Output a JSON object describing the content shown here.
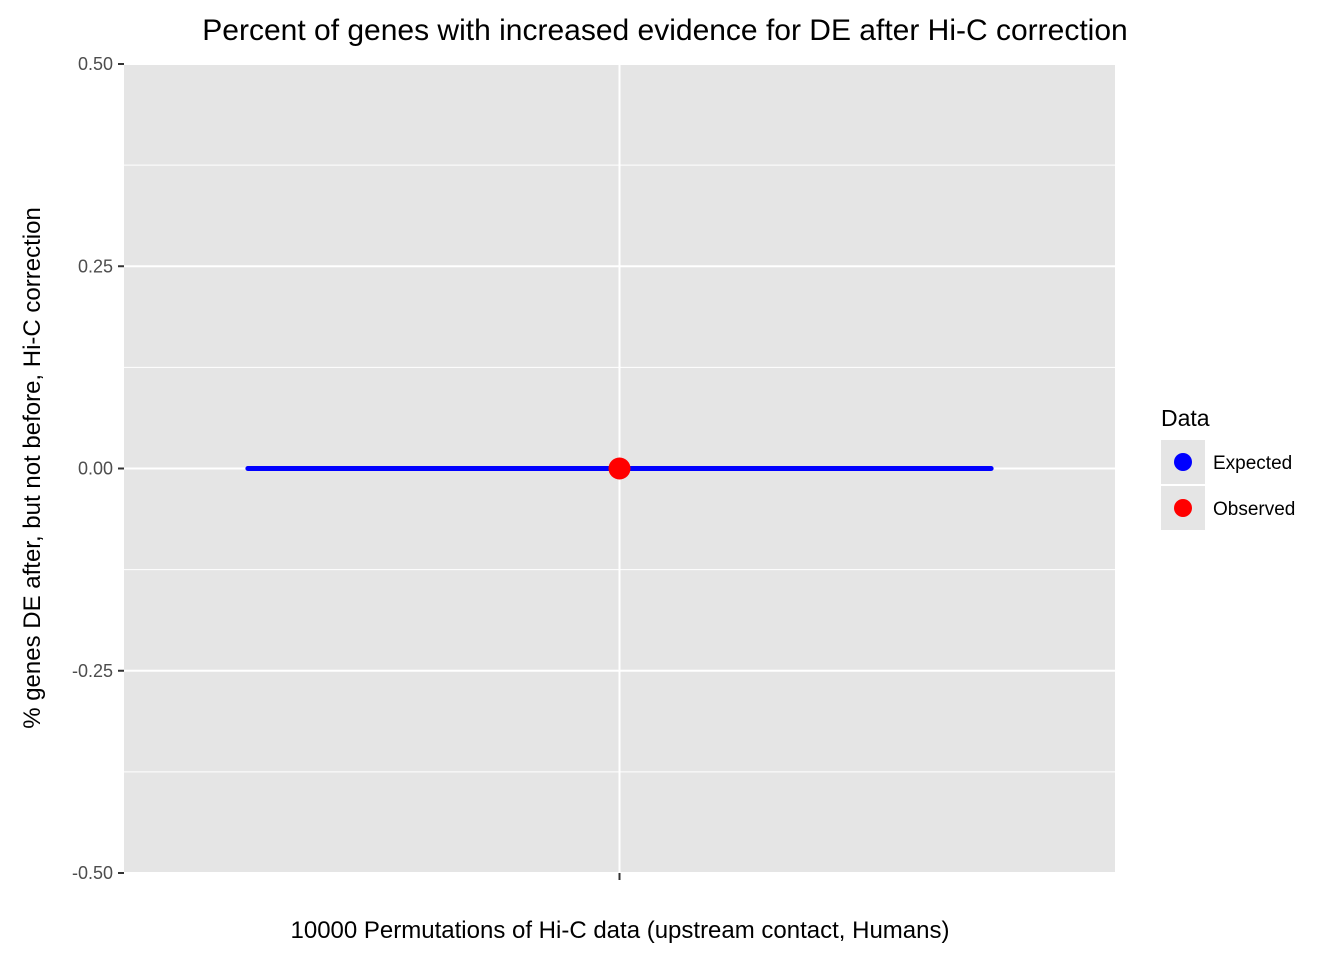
{
  "chart_data": {
    "type": "scatter",
    "title": "Percent of genes with increased evidence for DE after Hi-C correction",
    "xlabel": "10000 Permutations of Hi-C data (upstream contact, Humans)",
    "ylabel": "% genes DE after, but not before, Hi-C correction",
    "ylim": [
      -0.5,
      0.5
    ],
    "yticks": [
      -0.5,
      -0.25,
      0,
      0.25,
      0.5
    ],
    "ytick_labels": [
      "-0.50",
      "-0.25",
      "0.00",
      "0.25",
      "0.50"
    ],
    "grid": true,
    "legend": {
      "title": "Data",
      "placement": "right",
      "entries": [
        {
          "label": "Expected",
          "color": "#0000ff"
        },
        {
          "label": "Observed",
          "color": "#ff0000"
        }
      ]
    },
    "series": [
      {
        "name": "Expected",
        "type": "horizontal-segment",
        "y": 0,
        "x_span_fraction": [
          -0.75,
          0.75
        ],
        "color": "#0000ff"
      },
      {
        "name": "Observed",
        "type": "point",
        "y": 0,
        "color": "#ff0000"
      }
    ]
  },
  "colors": {
    "panel_background": "#e5e5e5",
    "grid_line": "#ffffff",
    "tick": "#333333",
    "expected": "#0000ff",
    "observed": "#ff0000"
  }
}
